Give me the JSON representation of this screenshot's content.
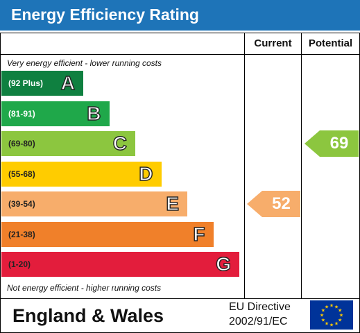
{
  "header": {
    "title": "Energy Efficiency Rating"
  },
  "columns": {
    "current": "Current",
    "potential": "Potential"
  },
  "notes": {
    "top": "Very energy efficient - lower running costs",
    "bottom": "Not energy efficient - higher running costs"
  },
  "footer": {
    "region": "England & Wales",
    "directive_line1": "EU Directive",
    "directive_line2": "2002/91/EC"
  },
  "chart_data": {
    "type": "bar",
    "scale": "SAP energy efficiency rating",
    "bands": [
      {
        "letter": "A",
        "range": "(92 Plus)",
        "min": 92,
        "max": 100,
        "color": "#0f8040",
        "range_color": "#ffffff"
      },
      {
        "letter": "B",
        "range": "(81-91)",
        "min": 81,
        "max": 91,
        "color": "#1fa84a",
        "range_color": "#ffffff"
      },
      {
        "letter": "C",
        "range": "(69-80)",
        "min": 69,
        "max": 80,
        "color": "#8cc63f",
        "range_color": "#222222"
      },
      {
        "letter": "D",
        "range": "(55-68)",
        "min": 55,
        "max": 68,
        "color": "#ffcc00",
        "range_color": "#222222"
      },
      {
        "letter": "E",
        "range": "(39-54)",
        "min": 39,
        "max": 54,
        "color": "#f7ad6b",
        "range_color": "#222222"
      },
      {
        "letter": "F",
        "range": "(21-38)",
        "min": 21,
        "max": 38,
        "color": "#f0802a",
        "range_color": "#222222"
      },
      {
        "letter": "G",
        "range": "(1-20)",
        "min": 1,
        "max": 20,
        "color": "#e31d3c",
        "range_color": "#222222"
      }
    ],
    "current": {
      "value": 52,
      "band": "E",
      "color": "#f7ad6b"
    },
    "potential": {
      "value": 69,
      "band": "C",
      "color": "#8cc63f"
    }
  }
}
